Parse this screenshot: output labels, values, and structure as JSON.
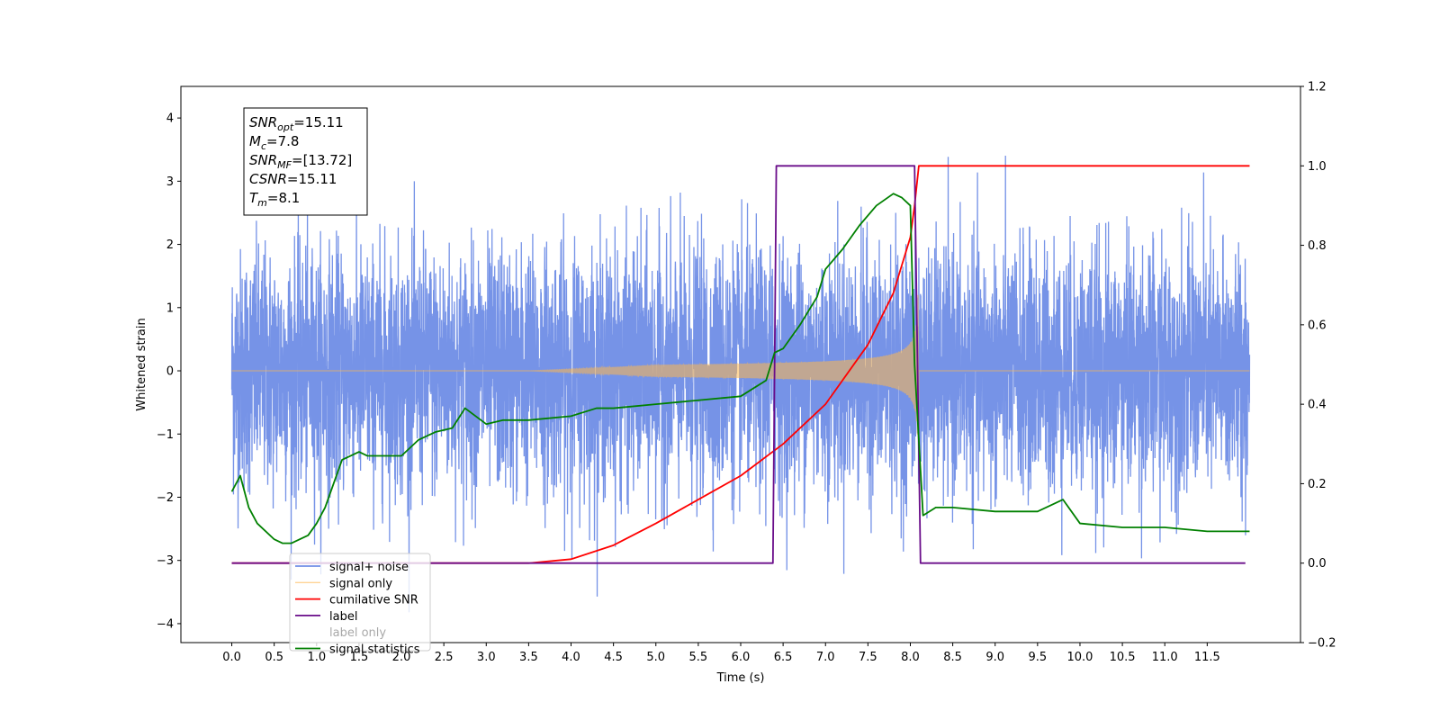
{
  "chart_data": {
    "type": "line",
    "title": "",
    "xlabel": "Time (s)",
    "ylabel": "Whitened strain",
    "ylabel_right": "",
    "xlim": [
      -0.6,
      12.6
    ],
    "ylim": [
      -4.3,
      4.5
    ],
    "ylim_right": [
      -0.2,
      1.2
    ],
    "grid": false,
    "legend_position": "lower-left",
    "x_ticks": [
      "0.0",
      "0.5",
      "1.0",
      "1.5",
      "2.0",
      "2.5",
      "3.0",
      "3.5",
      "4.0",
      "4.5",
      "5.0",
      "5.5",
      "6.0",
      "6.5",
      "7.0",
      "7.5",
      "8.0",
      "8.5",
      "9.0",
      "9.5",
      "10.0",
      "10.5",
      "11.0",
      "11.5"
    ],
    "y_ticks_left": [
      "−4",
      "−3",
      "−2",
      "−1",
      "0",
      "1",
      "2",
      "3",
      "4"
    ],
    "y_ticks_right": [
      "−0.2",
      "0.0",
      "0.2",
      "0.4",
      "0.6",
      "0.8",
      "1.0",
      "1.2"
    ],
    "annotation": {
      "lines": [
        {
          "sym": "SNR",
          "sub": "opt",
          "rest": "=15.11"
        },
        {
          "sym": "M",
          "sub": "c",
          "rest": "=7.8"
        },
        {
          "sym": "SNR",
          "sub": "MF",
          "rest": "=[13.72]"
        },
        {
          "sym": "CSNR",
          "sub": "",
          "rest": "=15.11"
        },
        {
          "sym": "T",
          "sub": "m",
          "rest": "=8.1"
        }
      ]
    },
    "series": [
      {
        "name": "signal+ noise",
        "axis": "left",
        "color": "#6f8de6",
        "description_range": {
          "x": [
            0.0,
            12.0
          ],
          "envelope_typical": 1.6,
          "max": 4.1,
          "min": -3.9
        }
      },
      {
        "name": "signal only",
        "axis": "left",
        "color": "#ffb84d",
        "chirp": {
          "t_start": 3.5,
          "t_merge": 8.1,
          "peak_amplitude": 1.2
        }
      },
      {
        "name": "cumilative SNR",
        "axis": "right",
        "color": "#ff0000",
        "x": [
          0.0,
          3.5,
          4.0,
          4.5,
          5.0,
          5.5,
          6.0,
          6.5,
          7.0,
          7.5,
          7.8,
          8.0,
          8.05,
          8.1,
          12.0
        ],
        "values": [
          0.0,
          0.0,
          0.01,
          0.045,
          0.1,
          0.16,
          0.22,
          0.3,
          0.4,
          0.55,
          0.68,
          0.82,
          0.9,
          1.0,
          1.0
        ]
      },
      {
        "name": "label",
        "axis": "right",
        "color": "#6a0d8a",
        "x": [
          0.0,
          6.38,
          6.42,
          8.05,
          8.12,
          11.95
        ],
        "values": [
          0.0,
          0.0,
          1.0,
          1.0,
          0.0,
          0.0
        ]
      },
      {
        "name": "label only",
        "axis": "right",
        "color": "#6a0d8a",
        "hidden_behind_legend": true,
        "x": [],
        "values": []
      },
      {
        "name": "signal statistics",
        "axis": "right",
        "color": "#008000",
        "x": [
          0.0,
          0.1,
          0.2,
          0.3,
          0.5,
          0.6,
          0.7,
          0.9,
          1.0,
          1.1,
          1.2,
          1.3,
          1.5,
          1.6,
          1.8,
          2.0,
          2.2,
          2.4,
          2.6,
          2.75,
          3.0,
          3.2,
          3.5,
          4.0,
          4.3,
          4.5,
          5.0,
          5.5,
          6.0,
          6.3,
          6.4,
          6.5,
          6.7,
          6.9,
          7.0,
          7.2,
          7.4,
          7.6,
          7.8,
          7.9,
          8.0,
          8.05,
          8.15,
          8.3,
          8.5,
          9.0,
          9.5,
          9.8,
          10.0,
          10.5,
          11.0,
          11.5,
          12.0
        ],
        "values": [
          0.18,
          0.22,
          0.14,
          0.1,
          0.06,
          0.05,
          0.05,
          0.07,
          0.1,
          0.14,
          0.2,
          0.26,
          0.28,
          0.27,
          0.27,
          0.27,
          0.31,
          0.33,
          0.34,
          0.39,
          0.35,
          0.36,
          0.36,
          0.37,
          0.39,
          0.39,
          0.4,
          0.41,
          0.42,
          0.46,
          0.53,
          0.54,
          0.6,
          0.67,
          0.74,
          0.79,
          0.85,
          0.9,
          0.93,
          0.92,
          0.9,
          0.5,
          0.12,
          0.14,
          0.14,
          0.13,
          0.13,
          0.16,
          0.1,
          0.09,
          0.09,
          0.08,
          0.08
        ]
      }
    ]
  }
}
